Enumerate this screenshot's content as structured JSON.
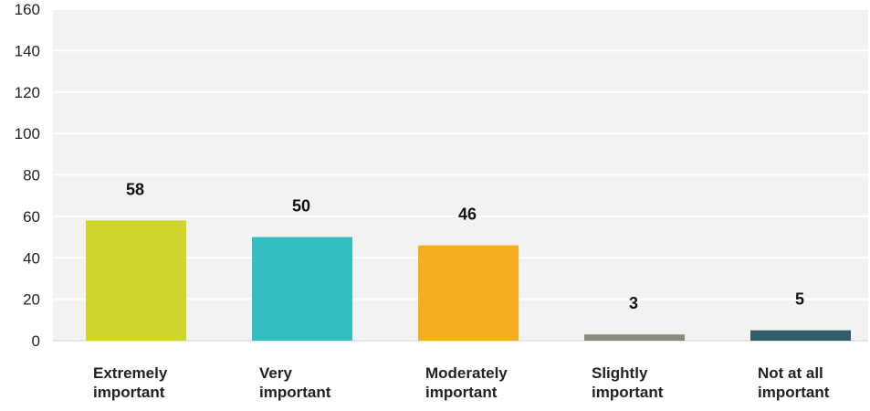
{
  "chart_data": {
    "type": "bar",
    "categories": [
      "Extremely important",
      "Very important",
      "Moderately important",
      "Slightly important",
      "Not at all important"
    ],
    "category_lines": [
      [
        "Extremely",
        "important"
      ],
      [
        "Very",
        "important"
      ],
      [
        "Moderately",
        "important"
      ],
      [
        "Slightly",
        "important"
      ],
      [
        "Not at all",
        "important"
      ]
    ],
    "values": [
      58,
      50,
      46,
      3,
      5
    ],
    "colors": [
      "#cfd52a",
      "#33bfc1",
      "#f6ad20",
      "#878c7c",
      "#2d5e6a"
    ],
    "ylim": [
      0,
      160
    ],
    "yticks": [
      0,
      20,
      40,
      60,
      80,
      100,
      120,
      140,
      160
    ],
    "grid": true,
    "plot_background": "#f2f2f2",
    "gridline_color": "#ffffff",
    "title": "",
    "xlabel": "",
    "ylabel": ""
  }
}
